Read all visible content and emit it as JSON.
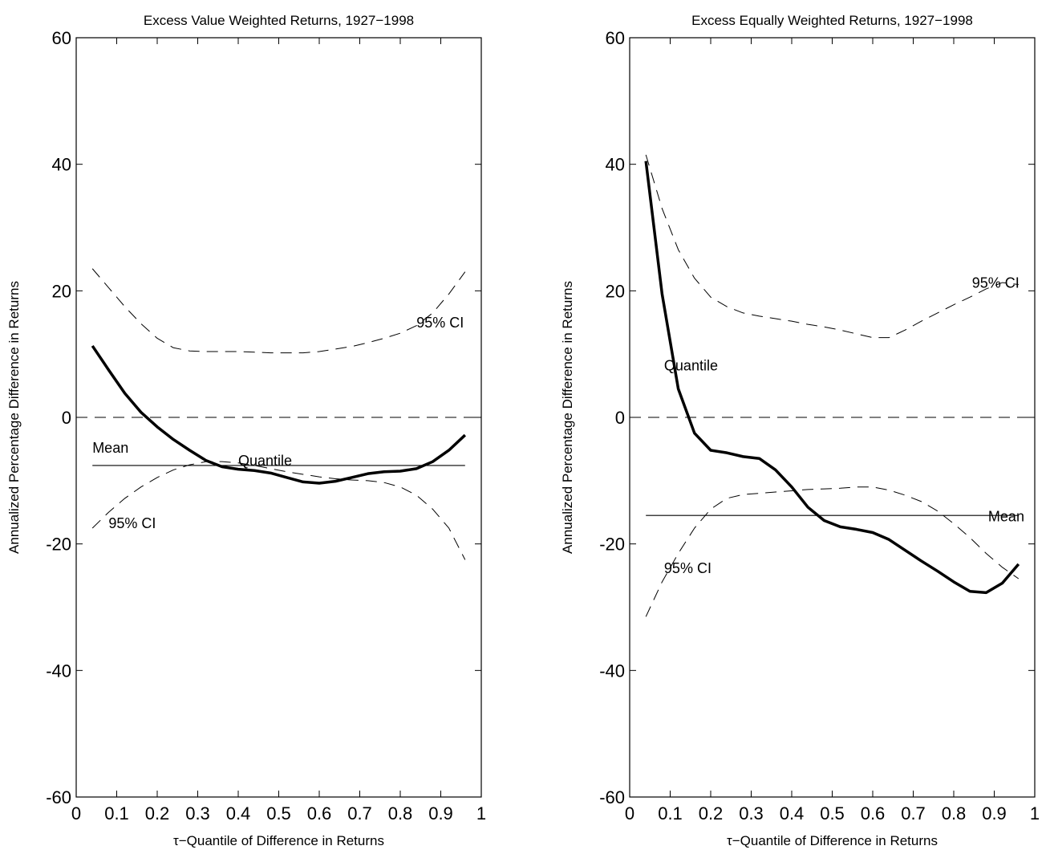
{
  "chart_data": [
    {
      "type": "line",
      "title": "Excess Value Weighted Returns, 1927−1998",
      "xlabel": "τ−Quantile of Difference in Returns",
      "ylabel": "Annualized Percentage Difference in Returns",
      "xlim": [
        0,
        1
      ],
      "ylim": [
        -60,
        60
      ],
      "xticks": [
        0,
        0.1,
        0.2,
        0.3,
        0.4,
        0.5,
        0.6,
        0.7,
        0.8,
        0.9,
        1
      ],
      "yticks": [
        -60,
        -40,
        -20,
        0,
        20,
        40,
        60
      ],
      "grid": false,
      "x": [
        0.04,
        0.08,
        0.12,
        0.16,
        0.2,
        0.24,
        0.28,
        0.32,
        0.36,
        0.4,
        0.44,
        0.48,
        0.52,
        0.56,
        0.6,
        0.64,
        0.68,
        0.72,
        0.76,
        0.8,
        0.84,
        0.88,
        0.92,
        0.96
      ],
      "series": [
        {
          "name": "Quantile",
          "color": "#000000",
          "style": "thick",
          "values": [
            11.3,
            7.5,
            3.8,
            0.8,
            -1.5,
            -3.5,
            -5.2,
            -6.8,
            -7.8,
            -8.2,
            -8.4,
            -8.8,
            -9.5,
            -10.2,
            -10.4,
            -10.1,
            -9.5,
            -8.9,
            -8.6,
            -8.5,
            -8.1,
            -7.0,
            -5.2,
            -2.8
          ]
        },
        {
          "name": "95% CI",
          "color": "#000000",
          "style": "dashed",
          "values": [
            23.5,
            20.5,
            17.5,
            14.8,
            12.5,
            11,
            10.5,
            10.4,
            10.4,
            10.4,
            10.3,
            10.2,
            10.2,
            10.2,
            10.4,
            10.8,
            11.2,
            11.8,
            12.5,
            13.3,
            14.5,
            16.5,
            19.5,
            23
          ]
        },
        {
          "name": "95% CI",
          "color": "#000000",
          "style": "dashed",
          "values": [
            -17.5,
            -15,
            -12.8,
            -11,
            -9.5,
            -8.3,
            -7.5,
            -7,
            -7,
            -7.2,
            -7.6,
            -8.1,
            -8.6,
            -9,
            -9.4,
            -9.7,
            -9.9,
            -10,
            -10.3,
            -11,
            -12.3,
            -14.5,
            -17.5,
            -22.5
          ]
        }
      ],
      "hlines": [
        {
          "name": "Mean",
          "value": -7.6
        }
      ],
      "reference_line": 0
    },
    {
      "type": "line",
      "title": "Excess Equally Weighted Returns, 1927−1998",
      "xlabel": "τ−Quantile of Difference in Returns",
      "ylabel": "Annualized Percentage Difference in Returns",
      "xlim": [
        0,
        1
      ],
      "ylim": [
        -60,
        60
      ],
      "xticks": [
        0,
        0.1,
        0.2,
        0.3,
        0.4,
        0.5,
        0.6,
        0.7,
        0.8,
        0.9,
        1
      ],
      "yticks": [
        -60,
        -40,
        -20,
        0,
        20,
        40,
        60
      ],
      "grid": false,
      "x": [
        0.04,
        0.08,
        0.12,
        0.16,
        0.2,
        0.24,
        0.28,
        0.32,
        0.36,
        0.4,
        0.44,
        0.48,
        0.52,
        0.56,
        0.6,
        0.64,
        0.68,
        0.72,
        0.76,
        0.8,
        0.84,
        0.88,
        0.92,
        0.96
      ],
      "series": [
        {
          "name": "Quantile",
          "color": "#000000",
          "style": "thick",
          "values": [
            40.5,
            19.5,
            4.5,
            -2.5,
            -5.2,
            -5.6,
            -6.2,
            -6.5,
            -8.3,
            -11,
            -14.2,
            -16.3,
            -17.3,
            -17.7,
            -18.2,
            -19.3,
            -21,
            -22.7,
            -24.3,
            -26,
            -27.5,
            -27.7,
            -26.2,
            -23.2
          ]
        },
        {
          "name": "95% CI",
          "color": "#000000",
          "style": "dashed",
          "values": [
            41.5,
            33,
            26.5,
            22,
            19,
            17.5,
            16.5,
            16,
            15.6,
            15.2,
            14.7,
            14.3,
            13.8,
            13.2,
            12.6,
            12.6,
            13.8,
            15.2,
            16.5,
            17.8,
            19,
            20.3,
            21.3,
            21
          ]
        },
        {
          "name": "95% CI",
          "color": "#000000",
          "style": "dashed",
          "values": [
            -31.5,
            -26,
            -21.5,
            -17.5,
            -14.5,
            -12.8,
            -12.2,
            -12,
            -11.8,
            -11.6,
            -11.4,
            -11.3,
            -11.2,
            -11,
            -11,
            -11.5,
            -12.3,
            -13.3,
            -14.8,
            -16.8,
            -19,
            -21.5,
            -23.7,
            -25.5
          ]
        }
      ],
      "hlines": [
        {
          "name": "Mean",
          "value": -15.5
        }
      ],
      "reference_line": 0
    }
  ]
}
